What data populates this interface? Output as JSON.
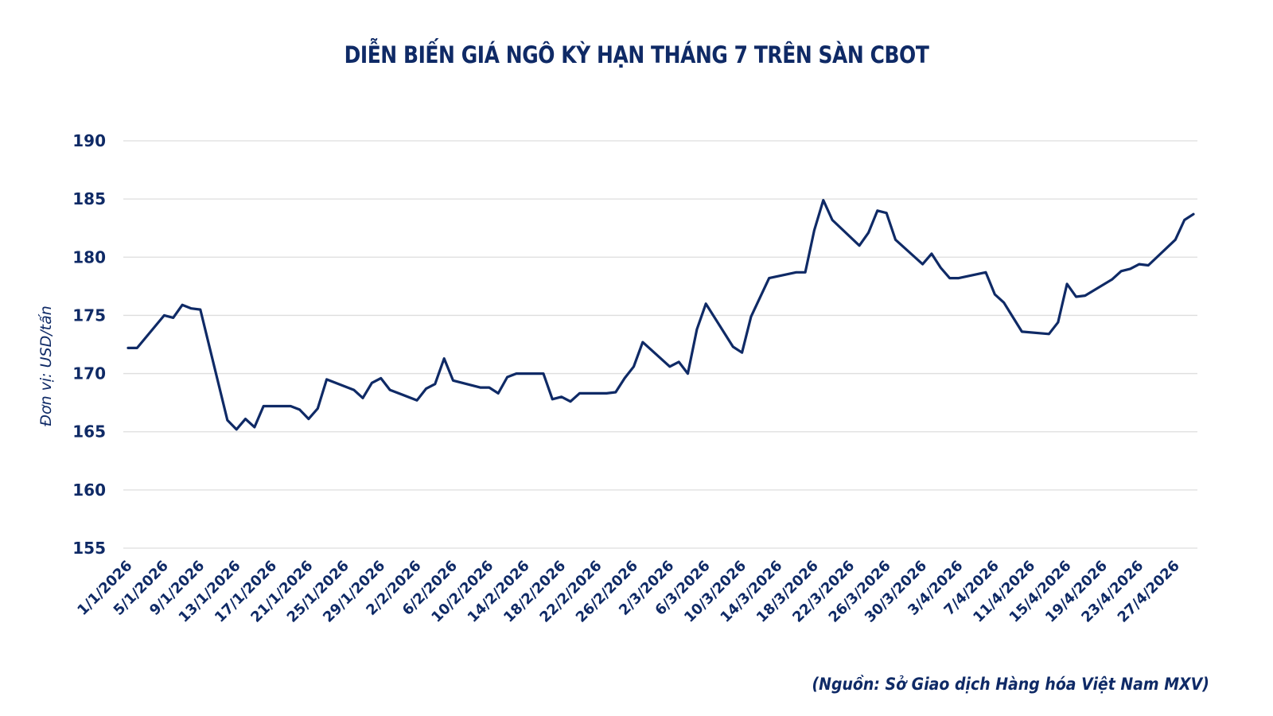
{
  "page": {
    "title": "DIỄN BIẾN GIÁ NGÔ KỲ HẠN THÁNG 7 TRÊN SÀN CBOT",
    "y_axis_title": "Đơn vị: USD/tấn",
    "source_note": "(Nguồn: Sở Giao dịch Hàng hóa Việt Nam MXV)"
  },
  "colors": {
    "line": "#0f2a66",
    "text": "#0f2a66",
    "grid": "#dedede",
    "background": "#ffffff"
  },
  "chart_data": {
    "type": "line",
    "title": "DIỄN BIẾN GIÁ NGÔ KỲ HẠN THÁNG 7 TRÊN SÀN CBOT",
    "xlabel": "",
    "ylabel": "Đơn vị: USD/tấn",
    "ylim": [
      155,
      190
    ],
    "yticks": [
      155,
      160,
      165,
      170,
      175,
      180,
      185,
      190
    ],
    "grid": true,
    "legend": null,
    "x_tick_labels": [
      "1/1/2026",
      "5/1/2026",
      "9/1/2026",
      "13/1/2026",
      "17/1/2026",
      "21/1/2026",
      "25/1/2026",
      "29/1/2026",
      "2/2/2026",
      "6/2/2026",
      "10/2/2026",
      "14/2/2026",
      "18/2/2026",
      "22/2/2026",
      "26/2/2026",
      "2/3/2026",
      "6/3/2026",
      "10/3/2026",
      "14/3/2026",
      "18/3/2026",
      "22/3/2026",
      "26/3/2026",
      "30/3/2026",
      "3/4/2026",
      "7/4/2026",
      "11/4/2026",
      "15/4/2026",
      "19/4/2026",
      "23/4/2026",
      "27/4/2026"
    ],
    "x_range_days": [
      0,
      118
    ],
    "series": [
      {
        "name": "Giá ngô kỳ hạn tháng 7",
        "x_day_offset": [
          0,
          1,
          4,
          5,
          6,
          7,
          8,
          11,
          12,
          13,
          14,
          15,
          18,
          19,
          20,
          21,
          22,
          25,
          26,
          27,
          28,
          29,
          32,
          33,
          34,
          35,
          36,
          39,
          40,
          41,
          42,
          43,
          46,
          47,
          48,
          49,
          50,
          53,
          54,
          55,
          56,
          57,
          60,
          61,
          62,
          63,
          64,
          67,
          68,
          69,
          71,
          74,
          75,
          76,
          77,
          78,
          81,
          82,
          83,
          84,
          85,
          88,
          89,
          90,
          91,
          92,
          95,
          96,
          97,
          99,
          102,
          103,
          104,
          105,
          106,
          109,
          110,
          111,
          112,
          113,
          116,
          117,
          118
        ],
        "values": [
          172.2,
          172.2,
          175.0,
          174.8,
          175.9,
          175.6,
          175.5,
          166.0,
          165.2,
          166.1,
          165.4,
          167.2,
          167.2,
          166.9,
          166.1,
          167.0,
          169.5,
          168.6,
          167.9,
          169.2,
          169.6,
          168.6,
          167.7,
          168.7,
          169.1,
          171.3,
          169.4,
          168.8,
          168.8,
          168.3,
          169.7,
          170.0,
          170.0,
          167.8,
          168.0,
          167.6,
          168.3,
          168.3,
          168.4,
          169.6,
          170.6,
          172.7,
          170.6,
          171.0,
          170.0,
          173.8,
          176.0,
          172.3,
          171.8,
          174.9,
          178.2,
          178.7,
          178.7,
          182.3,
          184.9,
          183.2,
          181.0,
          182.1,
          184.0,
          183.8,
          181.5,
          179.4,
          180.3,
          179.1,
          178.2,
          178.2,
          178.7,
          176.8,
          176.1,
          173.6,
          173.4,
          174.4,
          177.7,
          176.6,
          176.7,
          178.1,
          178.8,
          179.0,
          179.4,
          179.3,
          181.5,
          183.2,
          183.7
        ]
      }
    ]
  }
}
